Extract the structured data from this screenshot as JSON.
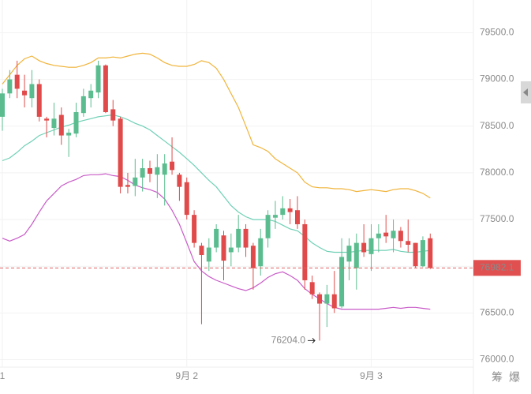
{
  "chart_data": {
    "type": "candlestick",
    "categories": [
      "1",
      null,
      null,
      null,
      null,
      null,
      null,
      null,
      null,
      null,
      null,
      null,
      null,
      null,
      null,
      null,
      null,
      null,
      null,
      null,
      null,
      null,
      null,
      null,
      null,
      "9月 2",
      null,
      null,
      null,
      null,
      null,
      null,
      null,
      null,
      null,
      null,
      null,
      null,
      null,
      null,
      null,
      null,
      null,
      null,
      null,
      null,
      null,
      null,
      null,
      null,
      "9月 3",
      null,
      null,
      null,
      null,
      null,
      null,
      null,
      null
    ],
    "open": [
      78600,
      78850,
      79050,
      78880,
      78800,
      78950,
      78580,
      78480,
      78620,
      78400,
      78420,
      78640,
      78800,
      78860,
      79150,
      78680,
      78580,
      77870,
      77860,
      77950,
      78050,
      77980,
      77980,
      78120,
      77980,
      77900,
      77550,
      77220,
      77050,
      77200,
      77330,
      77150,
      77200,
      77400,
      77220,
      77000,
      77300,
      77520,
      77550,
      77620,
      77600,
      77450,
      76830,
      76700,
      76600,
      76700,
      76570,
      77050,
      76980,
      77250,
      77130,
      77300,
      77360,
      77300,
      77380,
      77270,
      77250,
      77000,
      77300
    ],
    "high": [
      78900,
      79100,
      79200,
      79050,
      79100,
      79000,
      78600,
      78750,
      78700,
      78470,
      78750,
      78900,
      78950,
      79200,
      79160,
      78780,
      78600,
      78000,
      78150,
      78150,
      78130,
      78200,
      78200,
      78380,
      78000,
      77950,
      77600,
      77250,
      77300,
      77450,
      77380,
      77350,
      77550,
      77450,
      77250,
      77400,
      77600,
      77700,
      77750,
      77720,
      77750,
      77500,
      76900,
      76720,
      76800,
      76950,
      77300,
      77300,
      77350,
      77450,
      77450,
      77450,
      77550,
      77500,
      77420,
      77500,
      77250,
      77320,
      77350
    ],
    "low": [
      78450,
      78800,
      78800,
      78700,
      78700,
      78550,
      78380,
      78400,
      78300,
      78170,
      78380,
      78600,
      78700,
      78800,
      78640,
      78500,
      77780,
      77780,
      77750,
      77800,
      77900,
      77730,
      77650,
      77980,
      77700,
      77500,
      77200,
      76380,
      76950,
      77150,
      76850,
      77000,
      77150,
      77100,
      76750,
      76900,
      77200,
      77400,
      77500,
      77450,
      77400,
      76750,
      76650,
      76204,
      76350,
      76500,
      76550,
      76850,
      76750,
      77100,
      76950,
      77150,
      77250,
      77150,
      77200,
      77150,
      76980,
      76990,
      76970
    ],
    "close": [
      78850,
      79000,
      78900,
      78830,
      78950,
      78600,
      78560,
      78580,
      78400,
      78430,
      78650,
      78820,
      78880,
      79150,
      78650,
      78560,
      77850,
      77850,
      77950,
      78050,
      77990,
      78060,
      78100,
      78030,
      77850,
      77550,
      77250,
      77120,
      77200,
      77400,
      77060,
      77200,
      77400,
      77200,
      76980,
      77300,
      77550,
      77550,
      77620,
      77580,
      77450,
      76850,
      76700,
      76600,
      76700,
      76550,
      77100,
      77220,
      77250,
      77150,
      77300,
      77350,
      77320,
      77380,
      77270,
      77230,
      77000,
      77280,
      76982.1
    ],
    "up_color": "#5bbd8f",
    "down_color": "#e04a4a",
    "lines": [
      {
        "color": "#f0b43a",
        "values": [
          78950,
          79050,
          79150,
          79220,
          79250,
          79200,
          79170,
          79150,
          79140,
          79130,
          79130,
          79150,
          79180,
          79230,
          79230,
          79240,
          79230,
          79250,
          79270,
          79280,
          79270,
          79230,
          79180,
          79150,
          79140,
          79140,
          79160,
          79200,
          79180,
          79120,
          79000,
          78850,
          78700,
          78500,
          78300,
          78270,
          78230,
          78150,
          78100,
          78050,
          78000,
          77900,
          77850,
          77840,
          77840,
          77830,
          77830,
          77820,
          77800,
          77810,
          77820,
          77810,
          77800,
          77820,
          77830,
          77830,
          77810,
          77780,
          77730
        ]
      },
      {
        "color": "#6fd0b5",
        "values": [
          78130,
          78160,
          78220,
          78290,
          78340,
          78400,
          78430,
          78460,
          78490,
          78510,
          78540,
          78560,
          78580,
          78600,
          78610,
          78620,
          78600,
          78570,
          78530,
          78500,
          78460,
          78400,
          78340,
          78280,
          78220,
          78150,
          78080,
          78000,
          77920,
          77850,
          77750,
          77650,
          77580,
          77530,
          77500,
          77500,
          77500,
          77480,
          77440,
          77400,
          77380,
          77320,
          77250,
          77200,
          77160,
          77150,
          77150,
          77150,
          77160,
          77170,
          77170,
          77170,
          77170,
          77180,
          77160,
          77150,
          77150,
          77160,
          77170
        ]
      },
      {
        "color": "#c95cc8",
        "values": [
          77300,
          77270,
          77300,
          77340,
          77450,
          77580,
          77700,
          77780,
          77860,
          77900,
          77930,
          77970,
          77980,
          77980,
          77990,
          77970,
          77960,
          77920,
          77870,
          77840,
          77820,
          77790,
          77720,
          77600,
          77450,
          77250,
          77050,
          76950,
          76890,
          76850,
          76820,
          76790,
          76760,
          76740,
          76770,
          76820,
          76880,
          76920,
          76940,
          76900,
          76850,
          76760,
          76700,
          76650,
          76600,
          76560,
          76540,
          76540,
          76540,
          76540,
          76540,
          76540,
          76550,
          76560,
          76550,
          76560,
          76560,
          76550,
          76540
        ]
      }
    ],
    "ylim": [
      75920,
      79850
    ],
    "yticks": [
      {
        "value": 76000,
        "label": "76000.0"
      },
      {
        "value": 76500,
        "label": "76500.0"
      },
      {
        "value": 77000,
        "label": "77000.0"
      },
      {
        "value": 77500,
        "label": "77500.0"
      },
      {
        "value": 78000,
        "label": "78000.0"
      },
      {
        "value": 78500,
        "label": "78500.0"
      },
      {
        "value": 79000,
        "label": "79000.0"
      },
      {
        "value": 79500,
        "label": "79500.0"
      }
    ],
    "grid": true,
    "last_price": 76982.1,
    "low_annotation": {
      "value": 76204,
      "label": "76204.0"
    },
    "buttons": [
      "筹",
      "爆"
    ]
  }
}
